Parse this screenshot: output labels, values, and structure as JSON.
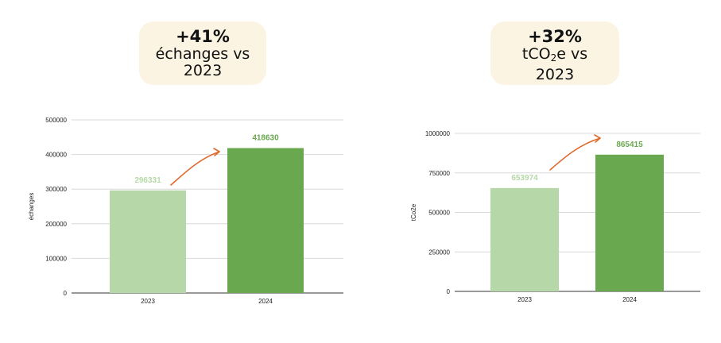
{
  "badges": [
    {
      "pct": "+41%",
      "line1": "échanges vs",
      "line2": "2023"
    },
    {
      "pct": "+32%",
      "line1_pre": "tCO",
      "line1_sub": "2",
      "line1_post": "e vs",
      "line2": "2023"
    }
  ],
  "colors": {
    "bar_2023": "#b6d7a8",
    "bar_2024": "#6aa84f",
    "arrow": "#e06a2b",
    "grid": "#d9d9d9"
  },
  "chart_data": [
    {
      "type": "bar",
      "categories": [
        "2023",
        "2024"
      ],
      "values": [
        296331,
        418630
      ],
      "data_labels": [
        "296331",
        "418630"
      ],
      "ylabel": "échanges",
      "ylim": [
        0,
        500000
      ],
      "yticks": [
        "0",
        "100000",
        "200000",
        "300000",
        "400000",
        "500000"
      ],
      "grid": true
    },
    {
      "type": "bar",
      "categories": [
        "2023",
        "2024"
      ],
      "values": [
        653974,
        865415
      ],
      "data_labels": [
        "653974",
        "865415"
      ],
      "ylabel": "tCo2e",
      "ylim": [
        0,
        1000000
      ],
      "yticks": [
        "0",
        "250000",
        "500000",
        "750000",
        "1000000"
      ],
      "grid": true
    }
  ]
}
